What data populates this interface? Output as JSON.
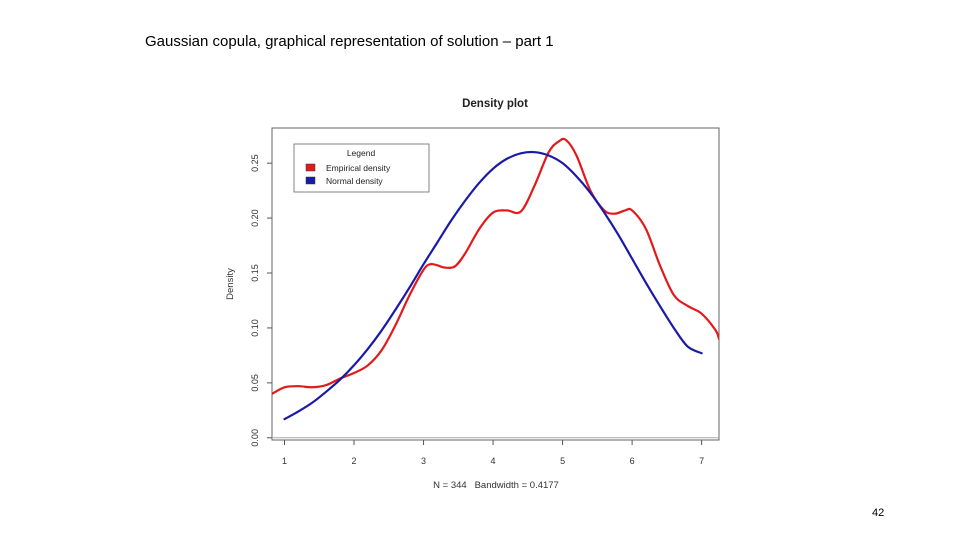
{
  "slide": {
    "title": "Gaussian copula, graphical representation of solution – part 1",
    "page_number": "42"
  },
  "colors": {
    "empirical": "#e31a1c",
    "normal": "#1a1aa8",
    "axis": "#555555",
    "zero_line": "#aaaaaa"
  },
  "chart_data": {
    "type": "line",
    "title": "Density plot",
    "xlabel": "N = 344   Bandwidth = 0.4177",
    "ylabel": "Density",
    "xlim": [
      0.82,
      7.25
    ],
    "ylim": [
      -0.002,
      0.282
    ],
    "x_ticks": [
      1,
      2,
      3,
      4,
      5,
      6,
      7
    ],
    "x_tick_labels": [
      "1",
      "2",
      "3",
      "4",
      "5",
      "6",
      "7"
    ],
    "y_ticks": [
      0.0,
      0.05,
      0.1,
      0.15,
      0.2,
      0.25
    ],
    "y_tick_labels": [
      "0.00",
      "0.05",
      "0.10",
      "0.15",
      "0.20",
      "0.25"
    ],
    "legend": {
      "title": "Legend",
      "position": "top-left",
      "entries": [
        "Empirical density",
        "Normal density"
      ]
    },
    "series": [
      {
        "name": "Empirical density",
        "color": "#e31a1c",
        "x": [
          0.82,
          1.0,
          1.2,
          1.4,
          1.6,
          1.8,
          2.0,
          2.2,
          2.4,
          2.6,
          2.8,
          3.0,
          3.1,
          3.2,
          3.3,
          3.45,
          3.6,
          3.8,
          4.0,
          4.2,
          4.4,
          4.6,
          4.8,
          4.95,
          5.05,
          5.2,
          5.4,
          5.6,
          5.75,
          5.9,
          6.0,
          6.2,
          6.4,
          6.6,
          6.8,
          7.0,
          7.2,
          7.25
        ],
        "y": [
          0.04,
          0.046,
          0.047,
          0.046,
          0.048,
          0.054,
          0.059,
          0.066,
          0.08,
          0.103,
          0.13,
          0.153,
          0.158,
          0.157,
          0.155,
          0.156,
          0.168,
          0.19,
          0.205,
          0.207,
          0.206,
          0.23,
          0.26,
          0.27,
          0.271,
          0.257,
          0.225,
          0.207,
          0.204,
          0.207,
          0.207,
          0.19,
          0.157,
          0.13,
          0.12,
          0.113,
          0.098,
          0.09
        ]
      },
      {
        "name": "Normal density",
        "color": "#1a1aa8",
        "x": [
          1.0,
          1.2,
          1.4,
          1.6,
          1.8,
          2.0,
          2.2,
          2.4,
          2.6,
          2.8,
          3.0,
          3.2,
          3.4,
          3.6,
          3.8,
          4.0,
          4.2,
          4.4,
          4.6,
          4.8,
          5.0,
          5.2,
          5.4,
          5.6,
          5.8,
          6.0,
          6.2,
          6.4,
          6.6,
          6.8,
          7.0
        ],
        "y": [
          0.017,
          0.024,
          0.032,
          0.042,
          0.053,
          0.066,
          0.081,
          0.098,
          0.117,
          0.137,
          0.158,
          0.178,
          0.198,
          0.216,
          0.232,
          0.245,
          0.254,
          0.259,
          0.26,
          0.257,
          0.25,
          0.238,
          0.223,
          0.205,
          0.185,
          0.163,
          0.141,
          0.12,
          0.1,
          0.083,
          0.077
        ]
      }
    ]
  }
}
